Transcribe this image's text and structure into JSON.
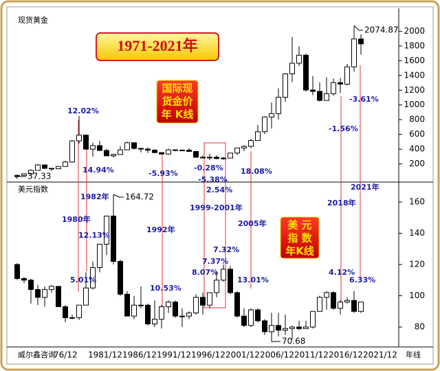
{
  "chart_data": {
    "type": "candlestick",
    "title": "1971-2021年",
    "footer": "威尔鑫咨询",
    "period": "年线",
    "categories": [
      null,
      null,
      null,
      null,
      null,
      "76/12",
      null,
      null,
      null,
      null,
      "1981/12",
      null,
      null,
      null,
      null,
      "1986/12",
      null,
      null,
      null,
      null,
      "1991/12",
      null,
      null,
      null,
      null,
      "1996/12",
      null,
      null,
      null,
      null,
      "2001/12",
      null,
      null,
      null,
      null,
      "2006/12",
      null,
      null,
      null,
      null,
      "2011/12",
      null,
      null,
      null,
      null,
      "2016/12",
      null,
      null,
      null,
      null,
      "2021/12"
    ],
    "up_color": "#ffffff",
    "down_color": "#000000",
    "panels": [
      {
        "label": "现货黄金",
        "badge": [
          "国际现",
          "货金价",
          "年 K线"
        ],
        "ylim": [
          0,
          2200
        ],
        "yticks": [
          200,
          400,
          600,
          800,
          1000,
          1200,
          1400,
          1600,
          1800,
          2000
        ],
        "open": [
          37.33,
          43.6,
          64.9,
          112,
          186,
          140,
          134,
          165,
          226,
          512,
          590,
          400,
          448,
          382,
          309,
          327,
          391,
          487,
          410,
          401,
          386,
          353,
          333,
          391,
          383,
          387,
          369,
          290,
          288,
          290,
          272,
          279,
          347,
          416,
          438,
          517,
          636,
          836,
          882,
          1104,
          1421,
          1566,
          1675,
          1202,
          1184,
          1061,
          1152,
          1303,
          1282,
          1517,
          1895
        ],
        "high": [
          44,
          70,
          127,
          197,
          186,
          140,
          168,
          243,
          524,
          850,
          600,
          488,
          510,
          406,
          340,
          442,
          502,
          487,
          418,
          424,
          403,
          360,
          406,
          396,
          396,
          416,
          369,
          313,
          338,
          317,
          293,
          349,
          417,
          456,
          541,
          730,
          845,
          1033,
          1226,
          1431,
          1921,
          1796,
          1696,
          1392,
          1307,
          1375,
          1357,
          1366,
          1557,
          2074.87,
          1959
        ],
        "low": [
          37.33,
          43,
          63,
          112,
          128,
          103,
          129,
          165,
          216,
          474,
          391,
          297,
          374,
          307,
          285,
          327,
          390,
          395,
          356,
          346,
          344,
          330,
          326,
          370,
          372,
          367,
          283,
          273,
          252,
          263,
          255,
          277,
          319,
          373,
          411,
          517,
          603,
          681,
          802,
          1044,
          1308,
          1527,
          1180,
          1131,
          1046,
          1061,
          1123,
          1160,
          1266,
          1451,
          1681
        ],
        "close": [
          43.6,
          64.9,
          112,
          186,
          140,
          134,
          165,
          226,
          512,
          590,
          400,
          448,
          382,
          309,
          327,
          391,
          487,
          410,
          401,
          386,
          353,
          333,
          391,
          383,
          387,
          369,
          290,
          288,
          290,
          272,
          279,
          347,
          416,
          438,
          517,
          636,
          836,
          882,
          1104,
          1421,
          1566,
          1675,
          1202,
          1184,
          1061,
          1152,
          1303,
          1282,
          1517,
          1895,
          1829
        ]
      },
      {
        "label": "美元指数",
        "badge": [
          "美 元",
          "指 数",
          "年K线"
        ],
        "ylim": [
          70,
          170
        ],
        "yticks": [
          80,
          100,
          120,
          140,
          160
        ],
        "open": [
          120,
          111,
          110,
          104,
          99,
          104,
          106,
          93,
          86,
          86,
          94,
          105,
          118,
          133,
          151,
          122,
          101,
          87,
          94,
          94,
          82,
          85,
          93,
          96,
          87,
          87,
          89,
          99,
          94,
          102,
          110,
          117,
          102,
          87,
          81,
          91,
          84,
          77,
          81,
          78,
          79,
          80,
          79,
          80,
          90,
          99,
          102,
          92,
          96,
          97,
          90
        ],
        "high": [
          121,
          112,
          111,
          107,
          106,
          107,
          106,
          94,
          88,
          94,
          115,
          122,
          133,
          151,
          164.72,
          123,
          103,
          100,
          106,
          95,
          97,
          94,
          97,
          97,
          92,
          90,
          101,
          102,
          102,
          116,
          120,
          119,
          103,
          92,
          92,
          92,
          85,
          89,
          89,
          88,
          81,
          84,
          84,
          90,
          100,
          103,
          103,
          97,
          99,
          103,
          96
        ],
        "low": [
          110,
          108,
          95,
          94,
          93,
          102,
          93,
          83,
          85,
          84.5,
          94,
          104,
          115,
          126,
          120,
          100,
          87,
          85,
          92,
          81,
          80,
          79,
          89,
          86,
          80,
          85,
          88,
          88,
          92,
          99,
          109,
          101,
          86,
          80,
          80,
          83,
          75,
          70.68,
          74,
          75,
          72,
          78,
          79,
          79,
          90,
          91,
          91,
          88,
          95,
          89,
          89
        ],
        "close": [
          111,
          110,
          104,
          99,
          104,
          106,
          93,
          86,
          86,
          94,
          105,
          118,
          133,
          151,
          122,
          101,
          87,
          94,
          94,
          82,
          85,
          93,
          96,
          87,
          87,
          89,
          99,
          94,
          102,
          110,
          117,
          102,
          87,
          81,
          91,
          84,
          77,
          81,
          78,
          79,
          80,
          79,
          80,
          90,
          99,
          102,
          92,
          96,
          97,
          90,
          96
        ]
      }
    ],
    "annotations": [
      "12.02%",
      "14.94%",
      "-5.93%",
      "-0.28%",
      "-5.38%",
      "18.08%",
      "-1.56%",
      "-3.61%",
      "2.54%",
      "1982年",
      "1980年",
      "12.13%",
      "1992年",
      "1999-2001年",
      "2005年",
      "7.32%",
      "7.37%",
      "8.07%",
      "5.01%",
      "10.53%",
      "13.01%",
      "2018年",
      "2021年",
      "4.12%",
      "6.33%"
    ]
  }
}
